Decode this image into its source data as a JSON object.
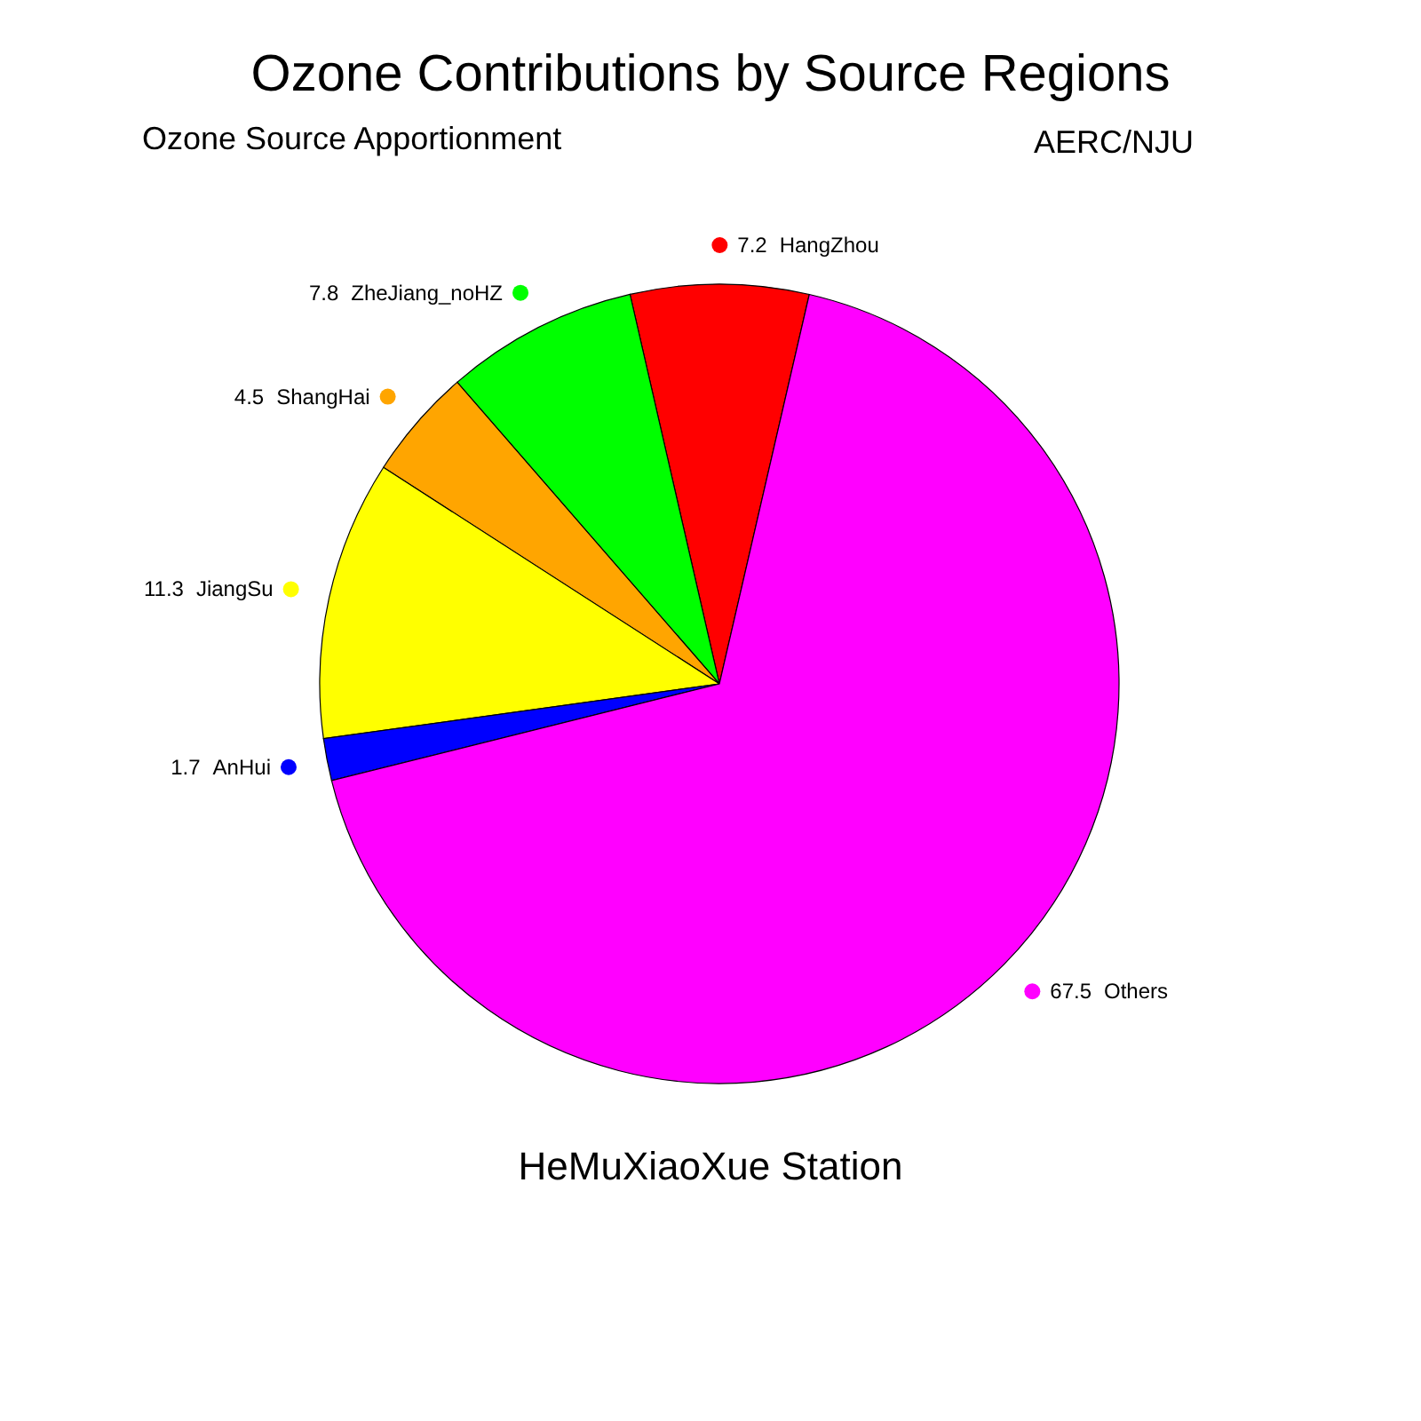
{
  "chart_data": {
    "type": "pie",
    "title": "Ozone Contributions by Source Regions",
    "subtitle": "Ozone Source Apportionment",
    "annotations": [
      "AERC/NJU",
      "HeMuXiaoXue Station"
    ],
    "categories": [
      "HangZhou",
      "ZheJiang_noHZ",
      "ShangHai",
      "JiangSu",
      "AnHui",
      "Others"
    ],
    "values": [
      7.2,
      7.8,
      4.5,
      11.3,
      1.7,
      67.5
    ],
    "colors": [
      "#ff0000",
      "#00ff00",
      "#ffa500",
      "#ffff00",
      "#0000ff",
      "#ff00ff"
    ],
    "data_labels": true,
    "legend": "left"
  }
}
